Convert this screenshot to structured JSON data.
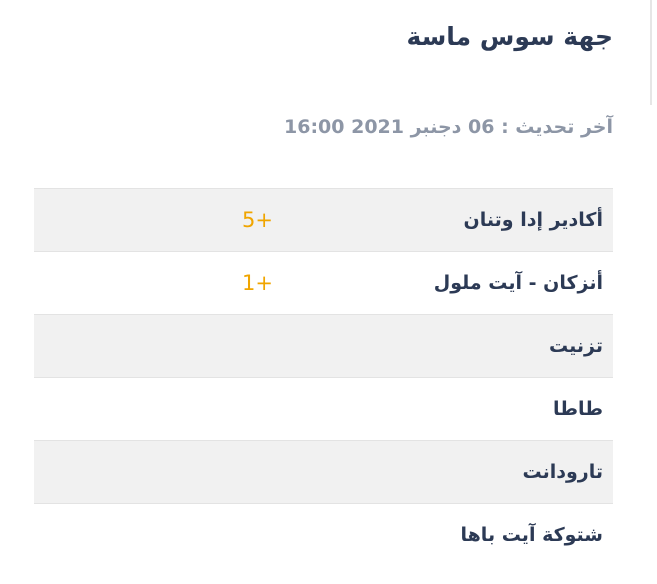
{
  "title": "جهة سوس ماسة",
  "last_update": "آخر تحديث : 06 دجنبر 2021 16:00",
  "rows": [
    {
      "name": "أكادير إدا وتنان",
      "value": "+5"
    },
    {
      "name": "أنزكان - آيت ملول",
      "value": "+1"
    },
    {
      "name": "تزنيت",
      "value": ""
    },
    {
      "name": "طاطا",
      "value": ""
    },
    {
      "name": "تارودانت",
      "value": ""
    },
    {
      "name": "شتوكة آيت باها",
      "value": ""
    }
  ],
  "colors": {
    "value": "#f0a500",
    "text": "#2c3a55"
  }
}
